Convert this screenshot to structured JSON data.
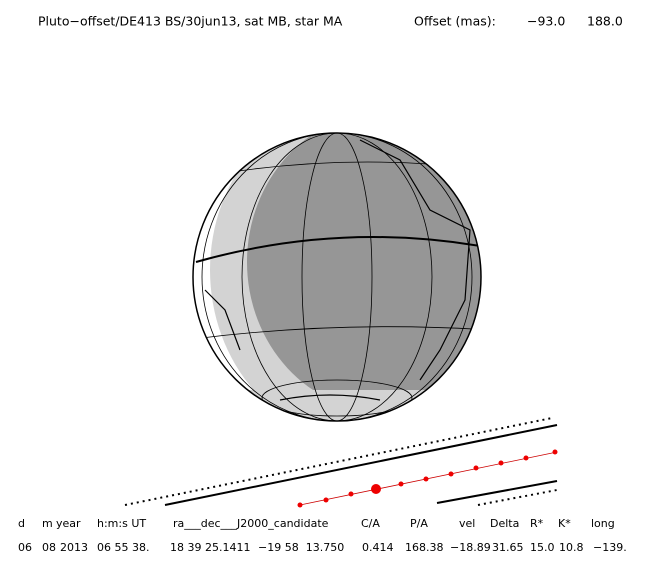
{
  "header": {
    "title": "Pluto−offset/DE413 BS/30jun13, sat MB, star MA",
    "offset_label": "Offset (mas):",
    "offset_values": [
      "−93.0",
      "188.0"
    ]
  },
  "table": {
    "columns": [
      "d",
      "m",
      "year",
      "h:m:s UT",
      "ra___dec___J2000_candidate",
      "C/A",
      "P/A",
      "vel",
      "Delta",
      "R*",
      "K*",
      "long"
    ],
    "rows": [
      [
        "06",
        "08",
        "2013",
        "06 55 38.",
        "18 39 25.1411",
        "−19 58  13.750",
        "0.414",
        "168.38",
        "−18.89",
        "31.65",
        "15.0",
        "10.8",
        "−139."
      ]
    ]
  }
}
